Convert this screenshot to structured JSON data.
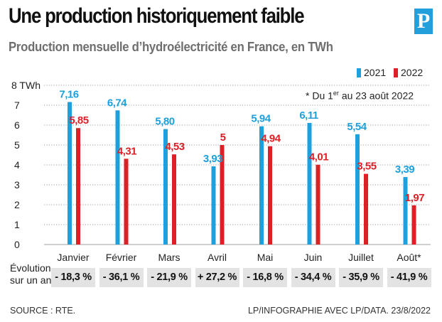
{
  "header": {
    "title": "Une production historiquement faible",
    "subtitle": "Production mensuelle d’hydroélectricité en France, en TWh",
    "logo": "P"
  },
  "note": {
    "prefix": "* Du 1",
    "sup": "er",
    "suffix": " au 23 août 2022"
  },
  "evolution_label_1": "Évolution",
  "evolution_label_2": "sur un an",
  "evolution": [
    "- 18,3 %",
    "- 36,1 %",
    "- 21,9 %",
    "+ 27,2 %",
    "- 16,8 %",
    "- 34,4 %",
    "- 35,9 %",
    "- 41,9 %"
  ],
  "footer": {
    "source": "SOURCE : RTE.",
    "credit": "LP/INFOGRAPHIE AVEC LP/DATA.  23/8/2022"
  },
  "colors": {
    "2021": "#1ea0dc",
    "2022": "#dd1f26",
    "grid": "#9aa0a6",
    "evo_bg": "#e3e3e3"
  },
  "chart_data": {
    "type": "bar",
    "categories": [
      "Janvier",
      "Février",
      "Mars",
      "Avril",
      "Mai",
      "Juin",
      "Juillet",
      "Août*"
    ],
    "series": [
      {
        "name": "2021",
        "values": [
          7.16,
          6.74,
          5.8,
          3.93,
          5.94,
          6.11,
          5.54,
          3.39
        ],
        "labels": [
          "7,16",
          "6,74",
          "5,80",
          "3,93",
          "5,94",
          "6,11",
          "5,54",
          "3,39"
        ]
      },
      {
        "name": "2022",
        "values": [
          5.85,
          4.31,
          4.53,
          5,
          4.94,
          4.01,
          3.55,
          1.97
        ],
        "labels": [
          "5,85",
          "4,31",
          "4,53",
          "5",
          "4,94",
          "4,01",
          "3,55",
          "1,97"
        ]
      }
    ],
    "ylim": [
      0,
      8
    ],
    "yticks": [
      "0",
      "1",
      "2",
      "3",
      "4",
      "5",
      "6",
      "7",
      "8 TWh"
    ],
    "grid": true,
    "legend": "top-right"
  }
}
